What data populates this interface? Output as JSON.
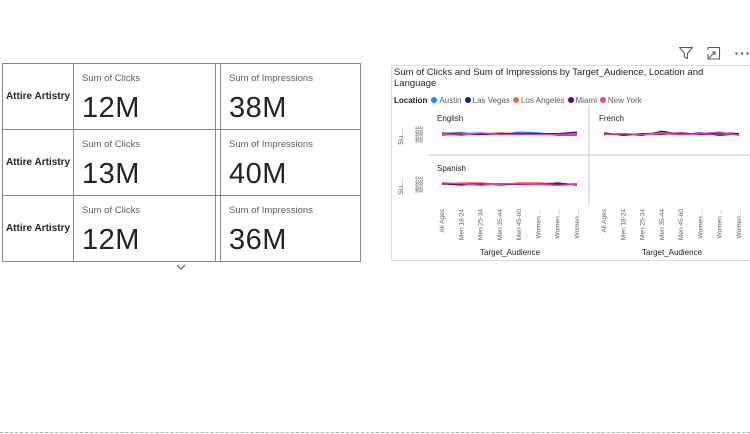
{
  "matrix": {
    "rows": [
      {
        "label": "Attire Artistry",
        "clicks_label": "Sum of Clicks",
        "clicks_value": "12M",
        "impressions_label": "Sum of Impressions",
        "impressions_value": "38M"
      },
      {
        "label": "Attire Artistry",
        "clicks_label": "Sum of Clicks",
        "clicks_value": "13M",
        "impressions_label": "Sum of Impressions",
        "impressions_value": "40M"
      },
      {
        "label": "Attire Artistry",
        "clicks_label": "Sum of Clicks",
        "clicks_value": "12M",
        "impressions_label": "Sum of Impressions",
        "impressions_value": "36M"
      }
    ]
  },
  "header_icons": [
    "filter-icon",
    "focus-mode-icon",
    "more-options-icon"
  ],
  "chart_data": {
    "type": "line",
    "title": "Sum of Clicks and Sum of Impressions by Target_Audience, Location and Language",
    "legend_title": "Location",
    "legend_placement": "top-left",
    "ylabel": "Su...",
    "xlabel": "Target_Audience",
    "y_ticks": [
      "44M",
      "42M",
      "40M",
      "38M",
      "36M"
    ],
    "categories": [
      "All Ages",
      "Men 18-24",
      "Men 25-34",
      "Men 35-44",
      "Men 45-60",
      "Women ...",
      "Women ...",
      "Women ..."
    ],
    "series": [
      {
        "name": "Austin",
        "color": "#118DFF"
      },
      {
        "name": "Las Vegas",
        "color": "#12239E"
      },
      {
        "name": "Los Angeles",
        "color": "#E66C37"
      },
      {
        "name": "Miami",
        "color": "#6B007B"
      },
      {
        "name": "New York",
        "color": "#E044A7"
      }
    ],
    "panels": [
      {
        "language": "English",
        "values": {
          "Austin": [
            39.5,
            40.5,
            41,
            40,
            41.5,
            41,
            39.5,
            39.5
          ],
          "Las Vegas": [
            40.5,
            41,
            40,
            40.5,
            40,
            40.5,
            40,
            41
          ],
          "Los Angeles": [
            40,
            40.5,
            40.5,
            41,
            40.5,
            40,
            40.5,
            40.5
          ],
          "Miami": [
            41,
            40,
            40,
            40.5,
            40.5,
            40.5,
            40.5,
            41.5
          ],
          "New York": [
            40.5,
            39.5,
            41,
            40,
            40,
            40,
            40,
            40
          ]
        }
      },
      {
        "language": "French",
        "values": {
          "Austin": [
            40.5,
            40,
            40,
            41.5,
            40,
            40.5,
            41,
            40.5
          ],
          "Las Vegas": [
            40,
            40.5,
            39.5,
            42,
            40,
            41,
            39.5,
            40.5
          ],
          "Los Angeles": [
            40.5,
            40,
            40.5,
            41,
            40.5,
            40,
            40.5,
            40
          ],
          "Miami": [
            41,
            39.5,
            40.5,
            40,
            41,
            40,
            41,
            40.5
          ],
          "New York": [
            40,
            40.5,
            40,
            40.5,
            40,
            40.5,
            41.5,
            39.5
          ]
        }
      },
      {
        "language": "Spanish",
        "values": {
          "Austin": [
            40.5,
            39.5,
            41,
            39.5,
            40.5,
            40.5,
            39.5,
            40.5
          ],
          "Las Vegas": [
            40.5,
            40,
            40.5,
            40,
            40.5,
            40,
            41,
            39.5
          ],
          "Los Angeles": [
            40,
            41,
            41,
            40,
            41,
            41,
            40.5,
            40
          ],
          "Miami": [
            40.5,
            40,
            40,
            40.5,
            40,
            40,
            40.5,
            40
          ],
          "New York": [
            41,
            40.5,
            39.5,
            40.5,
            40.5,
            40,
            39.5,
            40
          ]
        }
      }
    ]
  }
}
